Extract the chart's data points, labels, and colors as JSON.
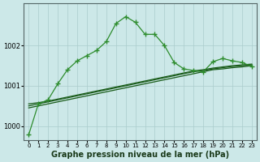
{
  "bg_color": "#cce8e8",
  "grid_color": "#aacccc",
  "line_color_dark": "#1a5c1a",
  "line_color_light": "#2d8c2d",
  "xlabel": "Graphe pression niveau de la mer (hPa)",
  "xlabel_fontsize": 7,
  "ylabel_ticks": [
    1000,
    1001,
    1002
  ],
  "xlim": [
    -0.5,
    23.5
  ],
  "ylim": [
    999.65,
    1003.05
  ],
  "xticks": [
    0,
    1,
    2,
    3,
    4,
    5,
    6,
    7,
    8,
    9,
    10,
    11,
    12,
    13,
    14,
    15,
    16,
    17,
    18,
    19,
    20,
    21,
    22,
    23
  ],
  "s1_x": [
    0,
    1,
    2,
    3,
    4,
    5,
    6,
    7,
    8,
    9,
    10,
    11,
    12,
    13,
    14,
    15,
    16,
    17,
    18,
    19,
    20,
    21,
    22,
    23
  ],
  "s1_y": [
    1000.45,
    1000.5,
    1000.55,
    1000.6,
    1000.65,
    1000.7,
    1000.75,
    1000.8,
    1000.85,
    1000.9,
    1000.95,
    1001.0,
    1001.05,
    1001.1,
    1001.15,
    1001.2,
    1001.25,
    1001.3,
    1001.35,
    1001.4,
    1001.42,
    1001.45,
    1001.47,
    1001.5
  ],
  "s2_x": [
    0,
    1,
    2,
    3,
    4,
    5,
    6,
    7,
    8,
    9,
    10,
    11,
    12,
    13,
    14,
    15,
    16,
    17,
    18,
    19,
    20,
    21,
    22,
    23
  ],
  "s2_y": [
    1000.5,
    1000.55,
    1000.6,
    1000.65,
    1000.7,
    1000.75,
    1000.8,
    1000.85,
    1000.9,
    1000.95,
    1001.0,
    1001.05,
    1001.1,
    1001.15,
    1001.2,
    1001.25,
    1001.3,
    1001.35,
    1001.38,
    1001.42,
    1001.45,
    1001.48,
    1001.5,
    1001.52
  ],
  "s3_x": [
    0,
    1,
    2,
    3,
    4,
    5,
    6,
    7,
    8,
    9,
    10,
    11,
    12,
    13,
    14,
    15,
    16,
    17,
    18,
    19,
    20,
    21,
    22,
    23
  ],
  "s3_y": [
    1000.55,
    1000.58,
    1000.62,
    1000.67,
    1000.72,
    1000.77,
    1000.82,
    1000.87,
    1000.92,
    1000.97,
    1001.02,
    1001.07,
    1001.12,
    1001.17,
    1001.22,
    1001.27,
    1001.32,
    1001.37,
    1001.4,
    1001.44,
    1001.47,
    1001.5,
    1001.52,
    1001.54
  ],
  "s4_x": [
    0,
    1,
    2,
    3,
    4,
    5,
    6,
    7,
    8,
    9,
    10,
    11,
    12,
    13,
    14,
    15,
    16,
    17,
    18,
    19,
    20,
    21,
    22,
    23
  ],
  "s4_y": [
    999.78,
    1000.55,
    1000.65,
    1001.05,
    1001.4,
    1001.62,
    1001.75,
    1001.88,
    1002.1,
    1002.55,
    1002.72,
    1002.58,
    1002.28,
    1002.28,
    1002.0,
    1001.58,
    1001.42,
    1001.38,
    1001.35,
    1001.6,
    1001.68,
    1001.62,
    1001.58,
    1001.48
  ]
}
